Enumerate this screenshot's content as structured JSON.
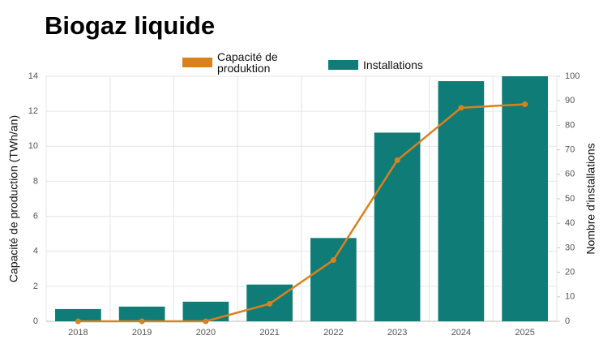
{
  "chart_data": {
    "type": "bar-line",
    "title": "Biogaz liquide",
    "categories": [
      "2018",
      "2019",
      "2020",
      "2021",
      "2022",
      "2023",
      "2024",
      "2025"
    ],
    "series": [
      {
        "name": "Capacité de produktion",
        "type": "line",
        "color": "#d9821b",
        "values": [
          0,
          0,
          0,
          1.0,
          3.5,
          9.2,
          12.2,
          12.4
        ]
      },
      {
        "name": "Installations",
        "type": "bar",
        "color": "#0f7c78",
        "axis": "y2",
        "values": [
          5,
          6,
          8,
          15,
          34,
          77,
          98,
          100
        ]
      }
    ],
    "y_label": "Capacité de production (TWh/an)",
    "y2_label": "Nombre d'installations",
    "ylim": [
      0,
      14
    ],
    "yticks": [
      0,
      2,
      4,
      6,
      8,
      10,
      12,
      14
    ],
    "y2lim": [
      0,
      100
    ],
    "y2ticks": [
      0,
      10,
      20,
      30,
      40,
      50,
      60,
      70,
      80,
      90,
      100
    ],
    "grid": true
  }
}
